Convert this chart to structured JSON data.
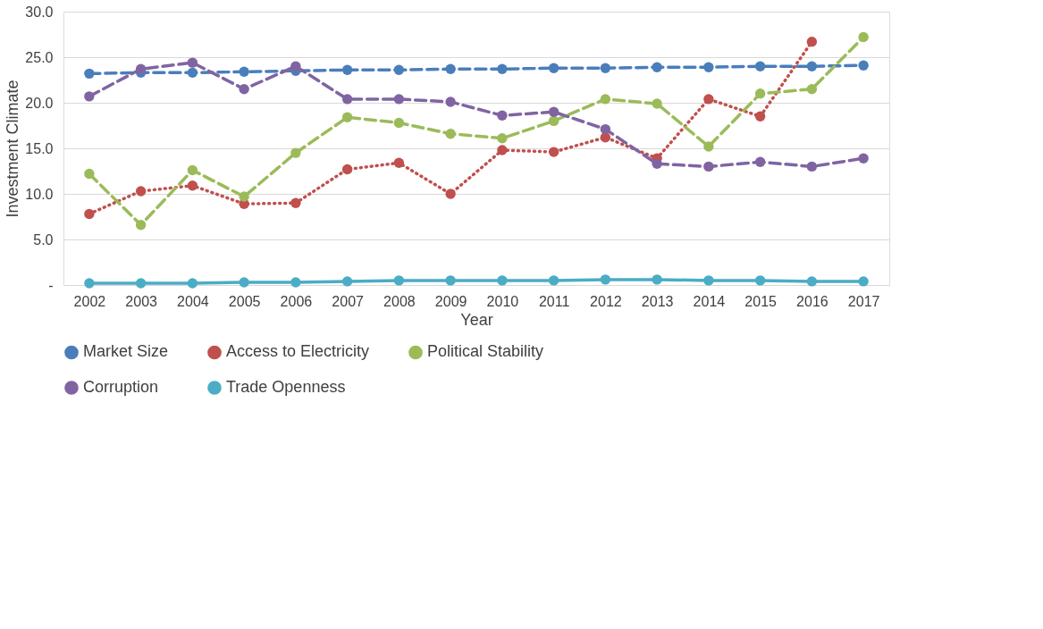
{
  "chart_data": {
    "type": "line",
    "xlabel": "Year",
    "ylabel": "Investment Climate",
    "categories": [
      "2002",
      "2003",
      "2004",
      "2005",
      "2006",
      "2007",
      "2008",
      "2009",
      "2010",
      "2011",
      "2012",
      "2013",
      "2014",
      "2015",
      "2016",
      "2017"
    ],
    "ylim": [
      0,
      30
    ],
    "yticks": [
      {
        "value": 0,
        "label": "-"
      },
      {
        "value": 5,
        "label": "5.0"
      },
      {
        "value": 10,
        "label": "10.0"
      },
      {
        "value": 15,
        "label": "15.0"
      },
      {
        "value": 20,
        "label": "20.0"
      },
      {
        "value": 25,
        "label": "25.0"
      },
      {
        "value": 30,
        "label": "30.0"
      }
    ],
    "grid": "y",
    "legend": "bottom",
    "marker": "circle",
    "series": [
      {
        "name": "Market Size",
        "color": "#4a7ebb",
        "line_style": "dashed",
        "values": [
          23.2,
          23.3,
          23.3,
          23.4,
          23.5,
          23.6,
          23.6,
          23.7,
          23.7,
          23.8,
          23.8,
          23.9,
          23.9,
          24.0,
          24.0,
          24.1
        ]
      },
      {
        "name": "Access to Electricity",
        "color": "#c0504d",
        "line_style": "dotted",
        "values": [
          7.8,
          10.3,
          10.9,
          8.9,
          9.0,
          12.7,
          13.4,
          10.0,
          14.8,
          14.6,
          16.2,
          13.9,
          20.4,
          18.5,
          26.7,
          null
        ]
      },
      {
        "name": "Political Stability",
        "color": "#9bbb59",
        "line_style": "dashed",
        "values": [
          12.2,
          6.6,
          12.6,
          9.7,
          14.5,
          18.4,
          17.8,
          16.6,
          16.1,
          18.0,
          20.4,
          19.9,
          15.2,
          21.0,
          21.5,
          27.2
        ]
      },
      {
        "name": "Corruption",
        "color": "#8064a2",
        "line_style": "dashed",
        "values": [
          20.7,
          23.7,
          24.4,
          21.5,
          24.0,
          20.4,
          20.4,
          20.1,
          18.6,
          19.0,
          17.1,
          13.3,
          13.0,
          13.5,
          13.0,
          13.9
        ]
      },
      {
        "name": "Trade Openness",
        "color": "#4bacc6",
        "line_style": "solid",
        "values": [
          0.2,
          0.2,
          0.2,
          0.3,
          0.3,
          0.4,
          0.5,
          0.5,
          0.5,
          0.5,
          0.6,
          0.6,
          0.5,
          0.5,
          0.4,
          0.4
        ]
      }
    ]
  }
}
